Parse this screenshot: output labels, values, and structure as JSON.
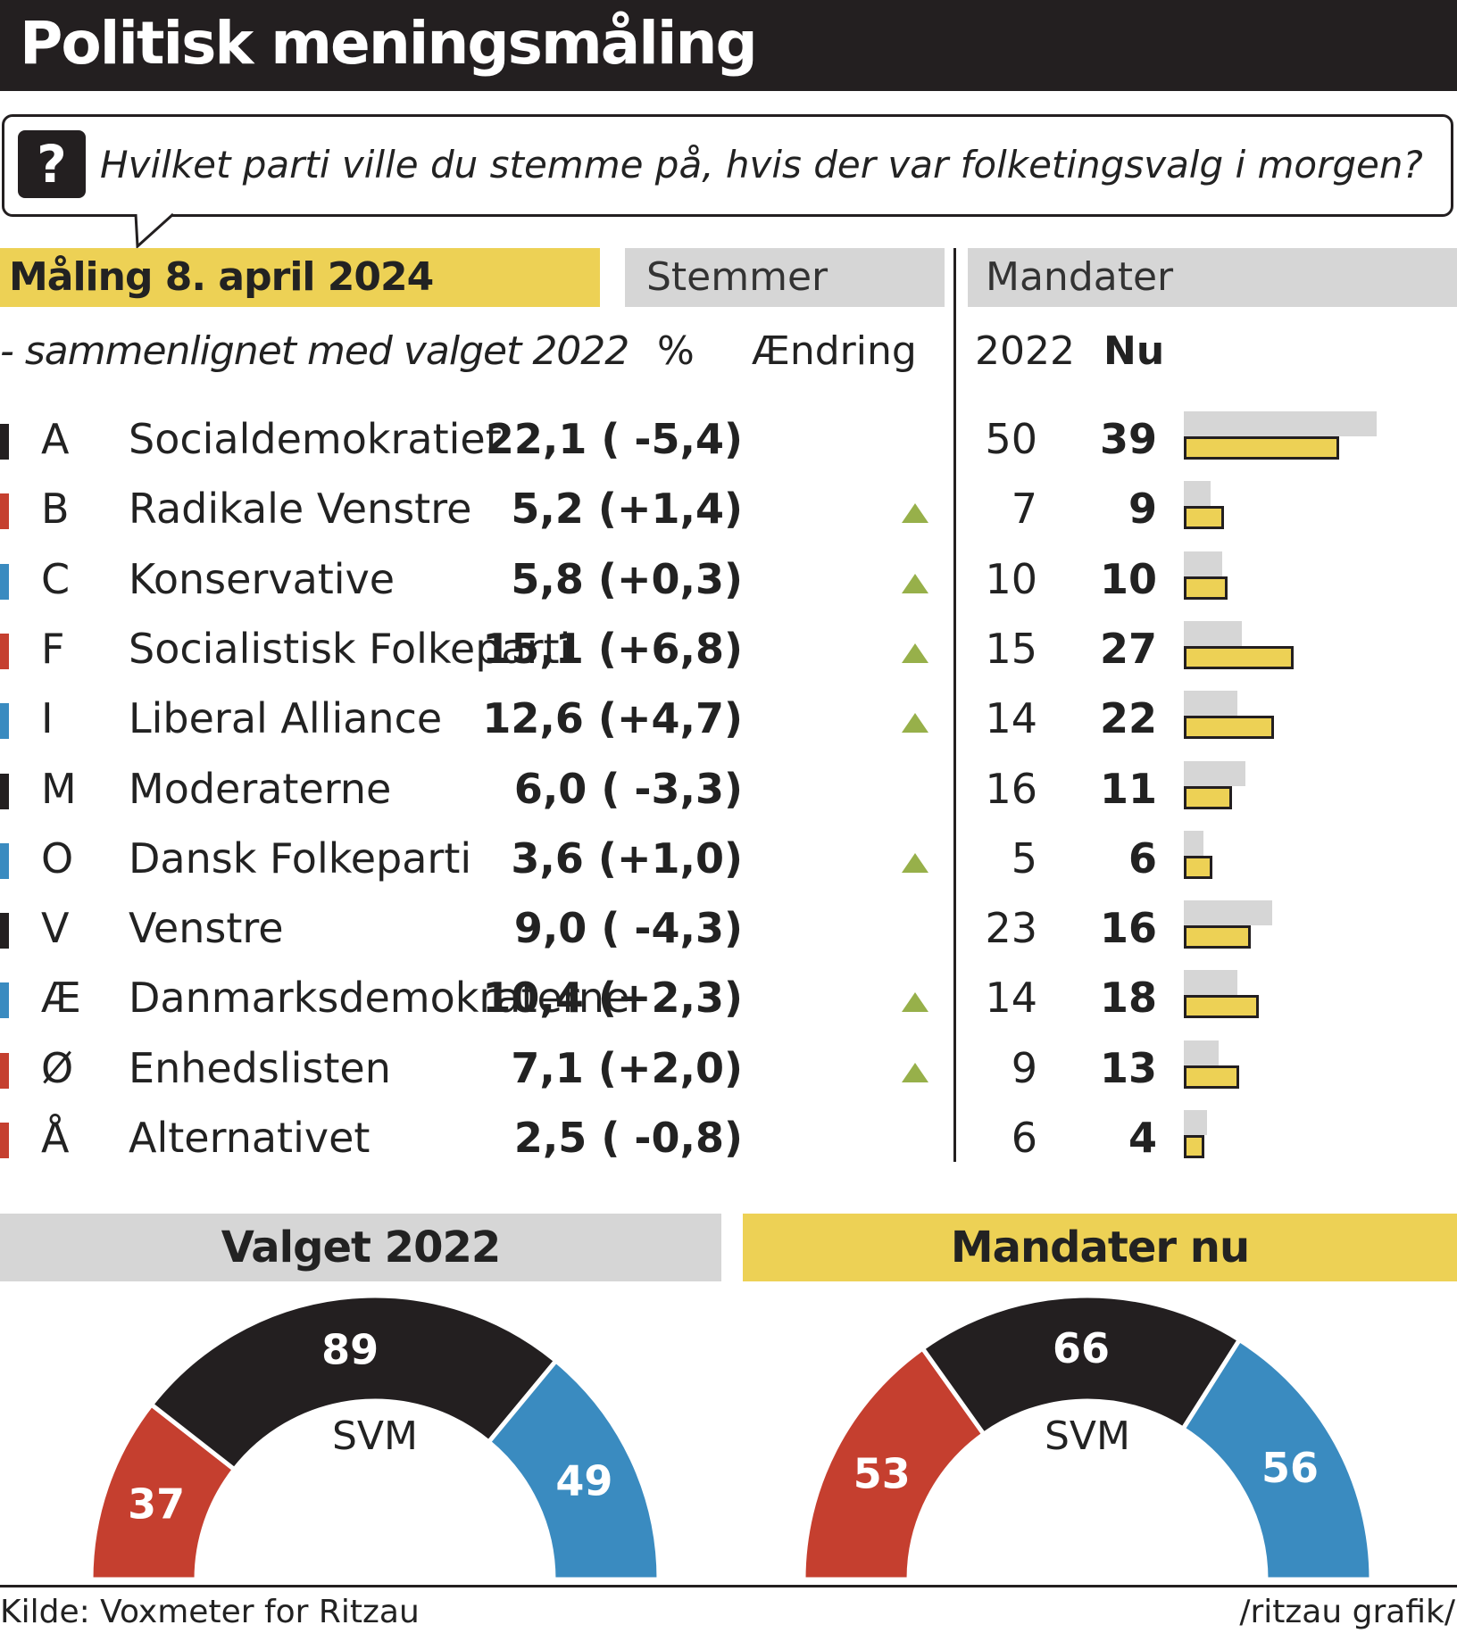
{
  "title": "Politisk meningsmåling",
  "question": "Hvilket parti ville du stemme på, hvis der var folketingsvalg i morgen?",
  "question_icon": "question-mark-icon",
  "headers": {
    "maaling": "Måling 8. april 2024",
    "stemmer": "Stemmer",
    "mandater": "Mandater",
    "subtitle": "- sammenlignet med valget 2022",
    "pct": "%",
    "aendring": "Ændring",
    "y2022": "2022",
    "nu": "Nu"
  },
  "colors": {
    "red": "#c53f2f",
    "blue": "#3a8bc0",
    "black": "#231f20",
    "yellow": "#edd155",
    "grey": "#d6d6d6",
    "green": "#97b04a"
  },
  "chart_data": [
    {
      "type": "table",
      "title": "Måling 8. april 2024",
      "subtitle": "- sammenlignet med valget 2022",
      "columns": [
        "%",
        "Ændring",
        "2022",
        "Nu"
      ],
      "rows": [
        {
          "letter": "A",
          "name": "Socialdemokratiet",
          "bloc": "black",
          "pct": "22,1",
          "change": "( -5,4)",
          "up": false,
          "seats_2022": 50,
          "seats_now": 39
        },
        {
          "letter": "B",
          "name": "Radikale Venstre",
          "bloc": "red",
          "pct": "5,2",
          "change": "(+1,4)",
          "up": true,
          "seats_2022": 7,
          "seats_now": 9
        },
        {
          "letter": "C",
          "name": "Konservative",
          "bloc": "blue",
          "pct": "5,8",
          "change": "(+0,3)",
          "up": true,
          "seats_2022": 10,
          "seats_now": 10
        },
        {
          "letter": "F",
          "name": "Socialistisk Folkeparti",
          "bloc": "red",
          "pct": "15,1",
          "change": "(+6,8)",
          "up": true,
          "seats_2022": 15,
          "seats_now": 27
        },
        {
          "letter": "I",
          "name": "Liberal Alliance",
          "bloc": "blue",
          "pct": "12,6",
          "change": "(+4,7)",
          "up": true,
          "seats_2022": 14,
          "seats_now": 22
        },
        {
          "letter": "M",
          "name": "Moderaterne",
          "bloc": "black",
          "pct": "6,0",
          "change": "( -3,3)",
          "up": false,
          "seats_2022": 16,
          "seats_now": 11
        },
        {
          "letter": "O",
          "name": "Dansk Folkeparti",
          "bloc": "blue",
          "pct": "3,6",
          "change": "(+1,0)",
          "up": true,
          "seats_2022": 5,
          "seats_now": 6
        },
        {
          "letter": "V",
          "name": "Venstre",
          "bloc": "black",
          "pct": "9,0",
          "change": "( -4,3)",
          "up": false,
          "seats_2022": 23,
          "seats_now": 16
        },
        {
          "letter": "Æ",
          "name": "Danmarksdemokraterne",
          "bloc": "blue",
          "pct": "10,4",
          "change": "(+2,3)",
          "up": true,
          "seats_2022": 14,
          "seats_now": 18
        },
        {
          "letter": "Ø",
          "name": "Enhedslisten",
          "bloc": "red",
          "pct": "7,1",
          "change": "(+2,0)",
          "up": true,
          "seats_2022": 9,
          "seats_now": 13
        },
        {
          "letter": "Å",
          "name": "Alternativet",
          "bloc": "red",
          "pct": "2,5",
          "change": "( -0,8)",
          "up": false,
          "seats_2022": 6,
          "seats_now": 4
        }
      ]
    },
    {
      "type": "pie",
      "title": "Valget 2022",
      "center_label": "SVM",
      "slices": [
        {
          "value": 37,
          "color": "#c53f2f"
        },
        {
          "value": 89,
          "color": "#231f20"
        },
        {
          "value": 49,
          "color": "#3a8bc0"
        }
      ]
    },
    {
      "type": "pie",
      "title": "Mandater nu",
      "center_label": "SVM",
      "slices": [
        {
          "value": 53,
          "color": "#c53f2f"
        },
        {
          "value": 66,
          "color": "#231f20"
        },
        {
          "value": 56,
          "color": "#3a8bc0"
        }
      ]
    }
  ],
  "footer": {
    "source": "Kilde: Voxmeter for Ritzau",
    "credit": "/ritzau grafik/"
  }
}
